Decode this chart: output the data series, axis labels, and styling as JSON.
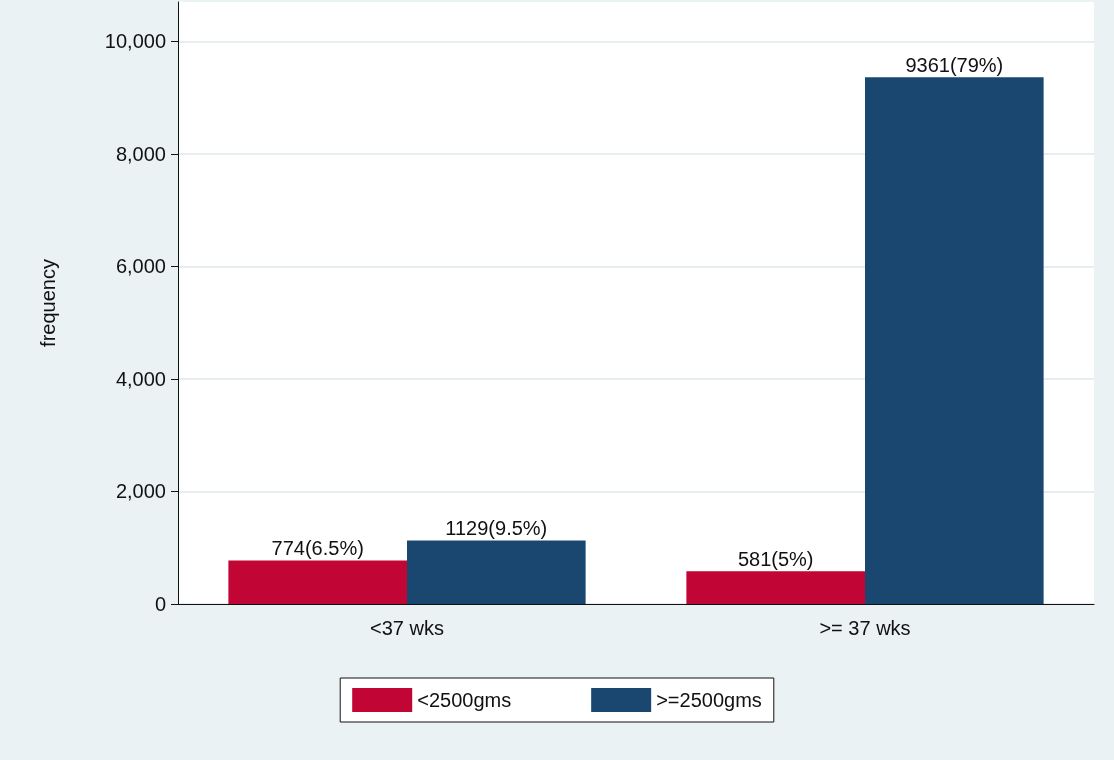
{
  "chart_data": {
    "type": "bar",
    "ylabel": "frequency",
    "categories": [
      "<37 wks",
      ">= 37 wks"
    ],
    "series": [
      {
        "name": "<2500gms",
        "color": "#c10534",
        "values": [
          774,
          581
        ],
        "value_labels": [
          "774(6.5%)",
          "581(5%)"
        ]
      },
      {
        "name": ">=2500gms",
        "color": "#1a476f",
        "values": [
          1129,
          9361
        ],
        "value_labels": [
          "1129(9.5%)",
          "9361(79%)"
        ]
      }
    ],
    "ylim": [
      0,
      10700
    ],
    "yticks": [
      0,
      {
        "value": 2000,
        "label": "2,000"
      },
      {
        "value": 4000,
        "label": "4,000"
      },
      {
        "value": 6000,
        "label": "6,000"
      },
      {
        "value": 8000,
        "label": "8,000"
      },
      {
        "value": 10000,
        "label": "10,000"
      }
    ],
    "grid": "y",
    "legend": "bottom"
  }
}
